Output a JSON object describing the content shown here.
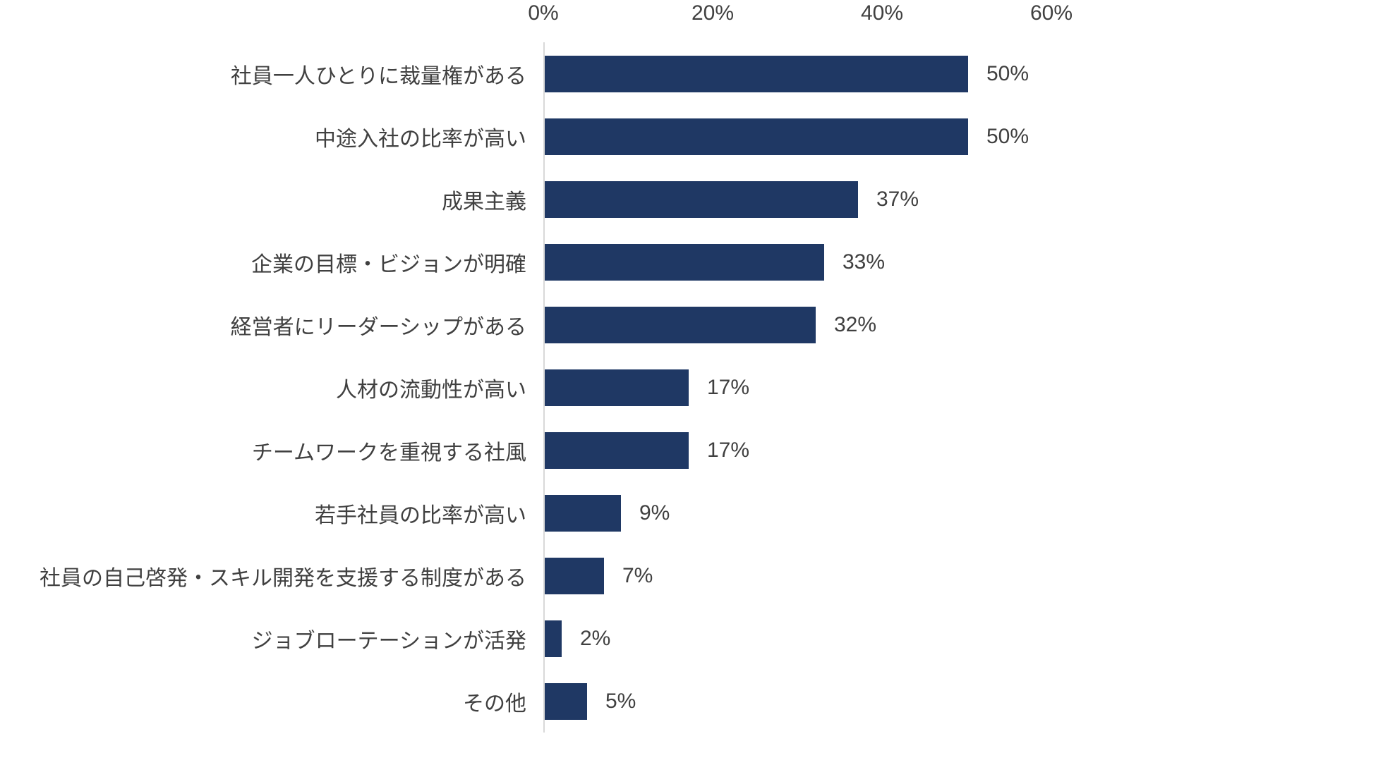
{
  "chart_data": {
    "type": "bar",
    "orientation": "horizontal",
    "title": "",
    "xlabel": "",
    "ylabel": "",
    "categories": [
      "社員一人ひとりに裁量権がある",
      "中途入社の比率が高い",
      "成果主義",
      "企業の目標・ビジョンが明確",
      "経営者にリーダーシップがある",
      "人材の流動性が高い",
      "チームワークを重視する社風",
      "若手社員の比率が高い",
      "社員の自己啓発・スキル開発を支援する制度がある",
      "ジョブローテーションが活発",
      "その他"
    ],
    "values": [
      50,
      50,
      37,
      33,
      32,
      17,
      17,
      9,
      7,
      2,
      5
    ],
    "value_labels": [
      "50%",
      "50%",
      "37%",
      "33%",
      "32%",
      "17%",
      "17%",
      "9%",
      "7%",
      "2%",
      "5%"
    ],
    "xlim": [
      0,
      60
    ],
    "x_ticks": [
      "0%",
      "20%",
      "40%",
      "60%"
    ],
    "x_tick_values": [
      0,
      20,
      40,
      60
    ],
    "grid": false,
    "legend": false,
    "bar_color": "#1F3864",
    "axis_line_color": "#D9D9D9",
    "text_color": "#404040",
    "background": "#FFFFFF"
  }
}
